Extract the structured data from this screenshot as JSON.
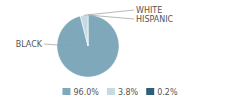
{
  "chart_data": {
    "type": "pie",
    "categories": [
      "BLACK",
      "WHITE",
      "HISPANIC"
    ],
    "values": [
      96.0,
      3.8,
      0.2
    ],
    "value_labels": [
      "96.0%",
      "3.8%",
      "0.2%"
    ],
    "colors": [
      "#7fa8bb",
      "#c5dae3",
      "#2d5f7a"
    ],
    "legend": "bottom"
  }
}
